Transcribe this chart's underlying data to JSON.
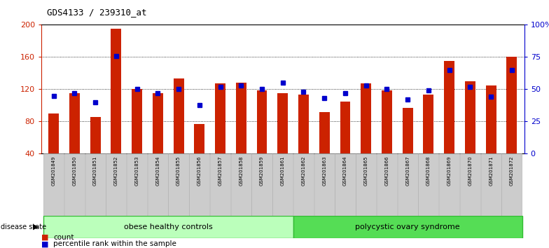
{
  "title": "GDS4133 / 239310_at",
  "samples": [
    "GSM201849",
    "GSM201850",
    "GSM201851",
    "GSM201852",
    "GSM201853",
    "GSM201854",
    "GSM201855",
    "GSM201856",
    "GSM201857",
    "GSM201858",
    "GSM201859",
    "GSM201861",
    "GSM201862",
    "GSM201863",
    "GSM201864",
    "GSM201865",
    "GSM201866",
    "GSM201867",
    "GSM201868",
    "GSM201869",
    "GSM201870",
    "GSM201871",
    "GSM201872"
  ],
  "counts": [
    90,
    115,
    86,
    195,
    120,
    115,
    133,
    77,
    127,
    128,
    119,
    115,
    113,
    92,
    105,
    127,
    119,
    97,
    113,
    155,
    130,
    125,
    160
  ],
  "percentiles": [
    45,
    47,
    40,
    76,
    50,
    47,
    50,
    38,
    52,
    53,
    50,
    55,
    48,
    43,
    47,
    53,
    50,
    42,
    49,
    65,
    52,
    44,
    65
  ],
  "group1_label": "obese healthy controls",
  "group2_label": "polycystic ovary syndrome",
  "group1_count": 12,
  "group2_count": 11,
  "count_color": "#cc2200",
  "percentile_color": "#0000cc",
  "bar_bottom": 40,
  "ylim_left": [
    40,
    200
  ],
  "ylim_right": [
    0,
    100
  ],
  "yticks_left": [
    40,
    80,
    120,
    160,
    200
  ],
  "yticks_right": [
    0,
    25,
    50,
    75,
    100
  ],
  "yticklabels_right": [
    "0",
    "25",
    "50",
    "75",
    "100%"
  ],
  "bg_color": "#ffffff",
  "plot_bg": "#ffffff",
  "legend_count": "count",
  "legend_pct": "percentile rank within the sample",
  "group1_color": "#bbffbb",
  "group2_color": "#55dd55",
  "label_bg": "#cccccc",
  "label_edge": "#aaaaaa"
}
